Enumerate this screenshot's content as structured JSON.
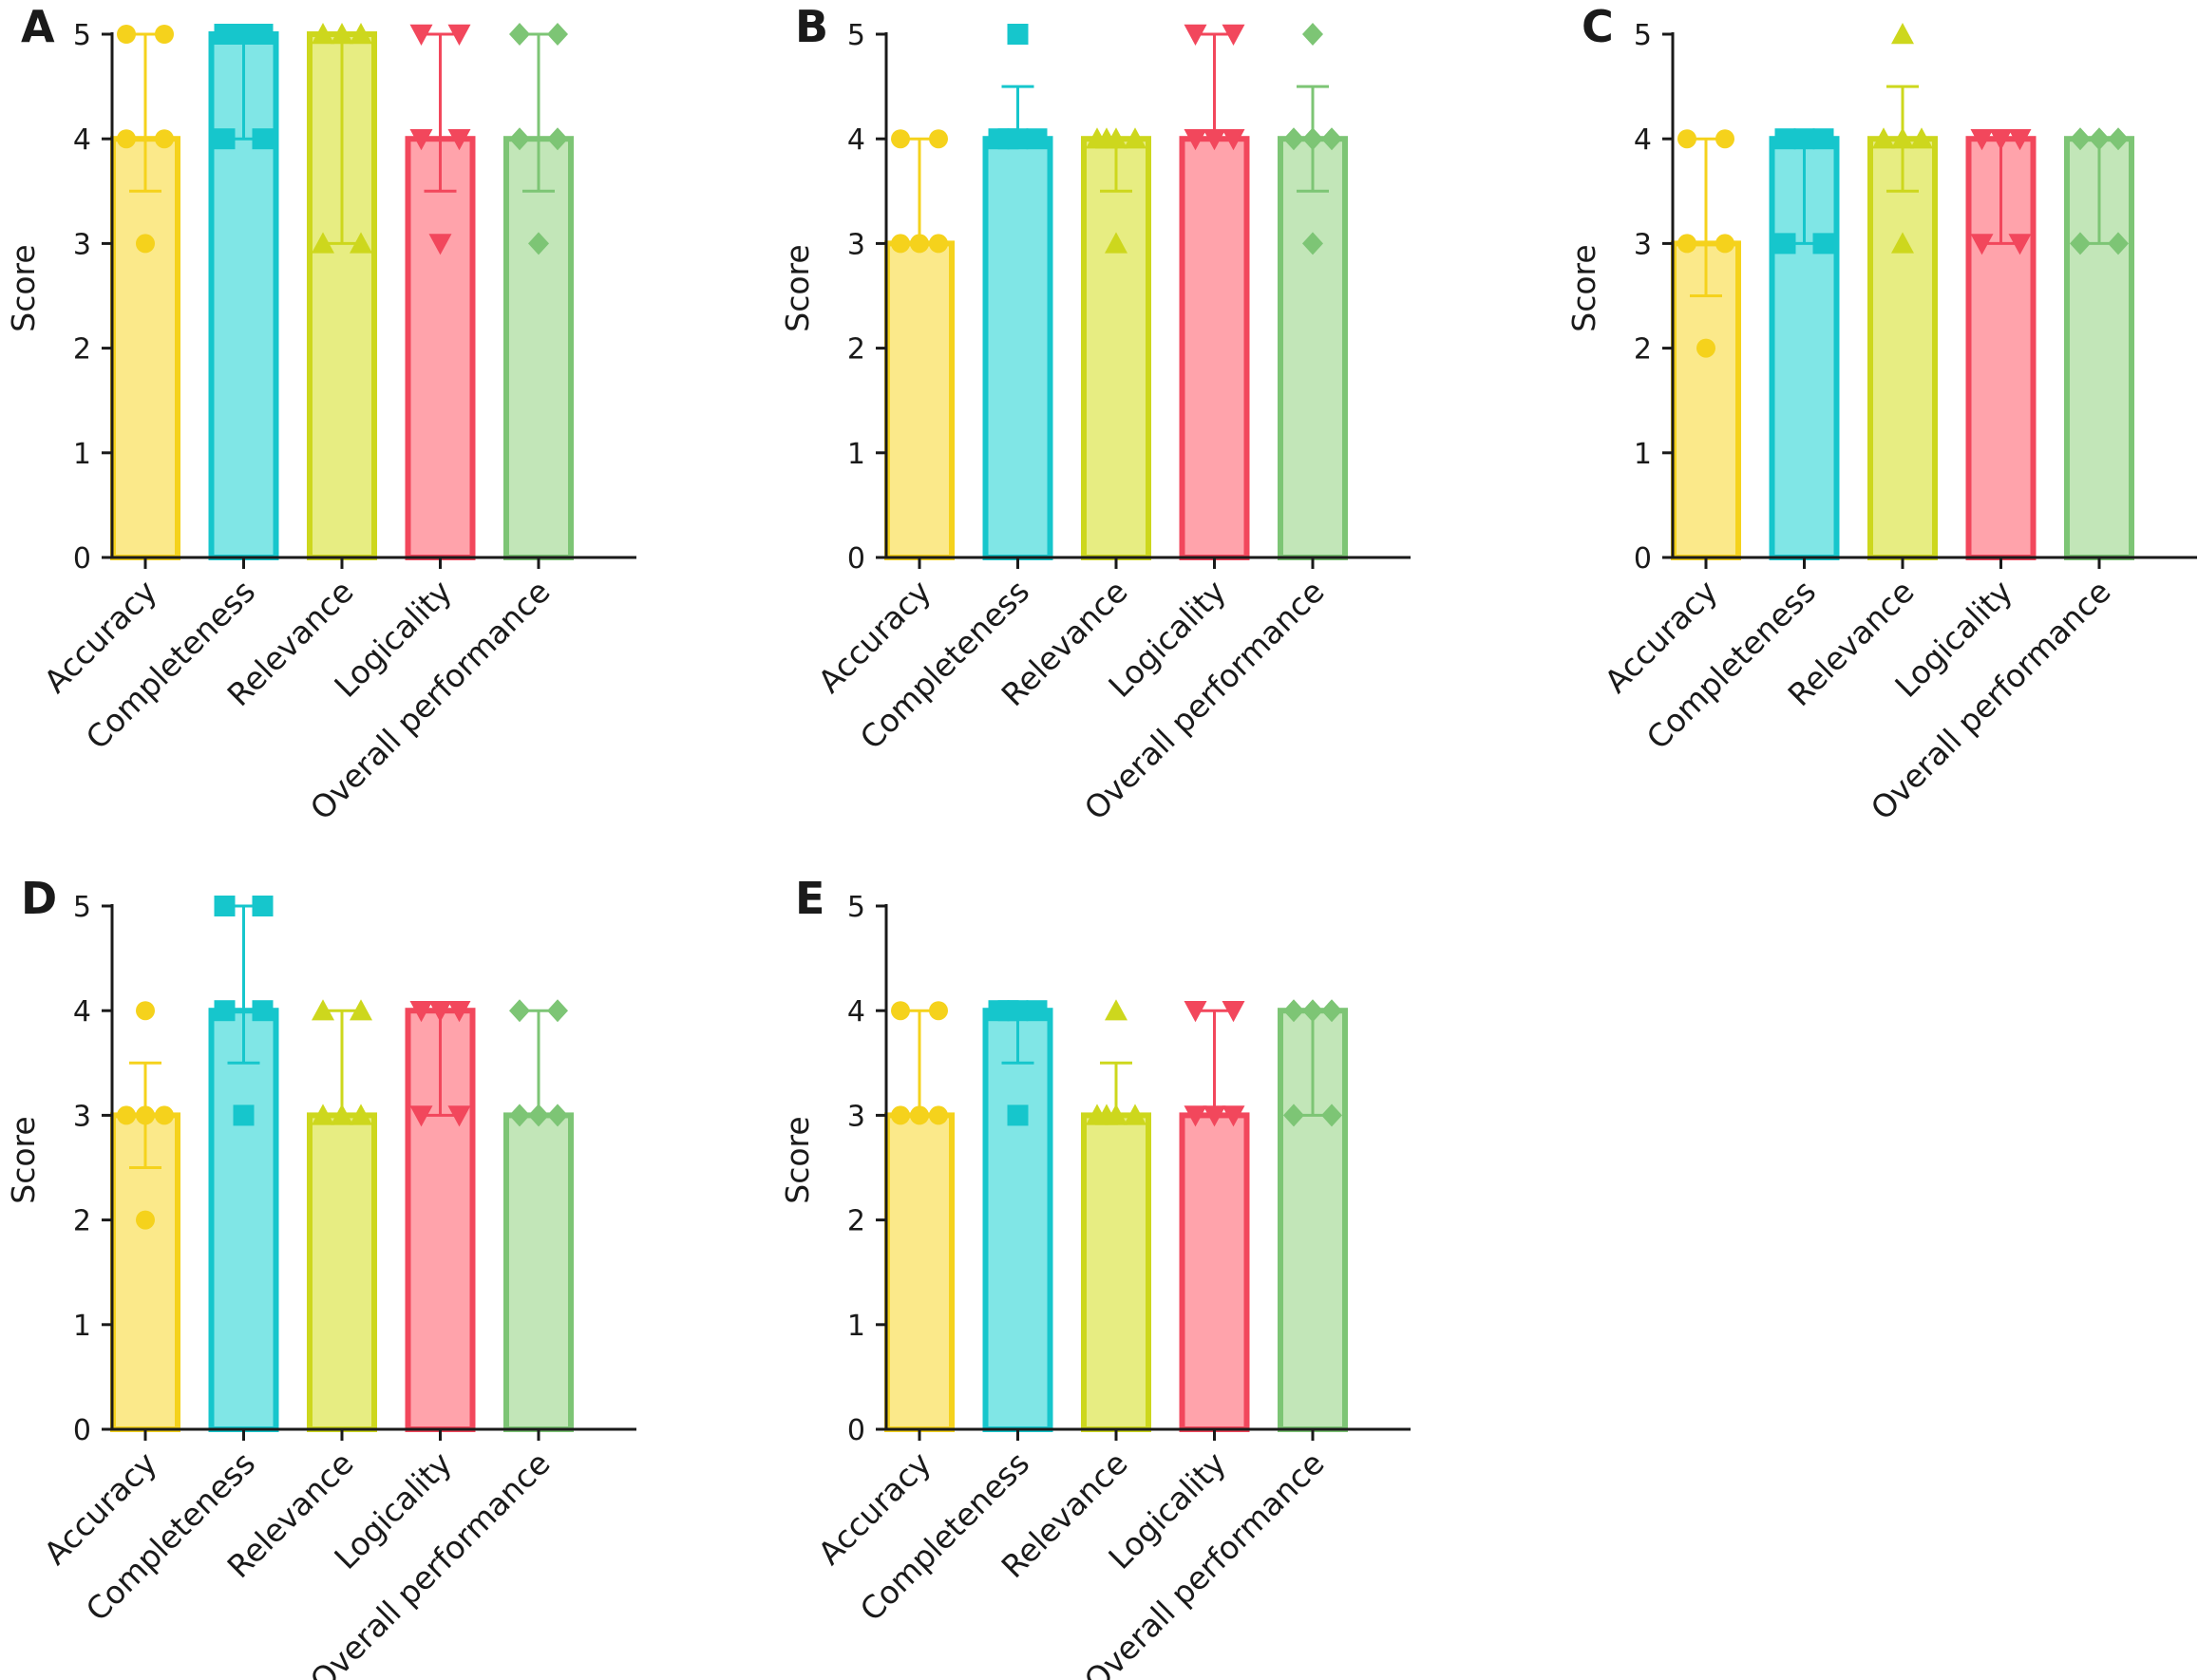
{
  "chart_data": [
    {
      "panel": "A",
      "type": "bar",
      "ylabel": "Score",
      "ylim": [
        0,
        5
      ],
      "yticks": [
        "0",
        "1",
        "2",
        "3",
        "4",
        "5"
      ],
      "categories": [
        "Accuracy",
        "Completeness",
        "Relevance",
        "Logicality",
        "Overall performance"
      ],
      "values": [
        4,
        5,
        5,
        4,
        4
      ],
      "error_low": [
        3.5,
        4,
        3,
        3.5,
        3.5
      ],
      "error_high": [
        5,
        5,
        5,
        5,
        5
      ],
      "points": [
        [
          5,
          5,
          4,
          4,
          3
        ],
        [
          5,
          5,
          5,
          4,
          4
        ],
        [
          5,
          5,
          5,
          3,
          3
        ],
        [
          5,
          5,
          4,
          4,
          3
        ],
        [
          5,
          5,
          4,
          4,
          3
        ]
      ]
    },
    {
      "panel": "B",
      "type": "bar",
      "ylabel": "Score",
      "ylim": [
        0,
        5
      ],
      "yticks": [
        "0",
        "1",
        "2",
        "3",
        "4",
        "5"
      ],
      "categories": [
        "Accuracy",
        "Completeness",
        "Relevance",
        "Logicality",
        "Overall performance"
      ],
      "values": [
        3,
        4,
        4,
        4,
        4
      ],
      "error_low": [
        3,
        4,
        3.5,
        4,
        3.5
      ],
      "error_high": [
        4,
        4.5,
        4,
        5,
        4.5
      ],
      "points": [
        [
          4,
          4,
          3,
          3,
          3
        ],
        [
          5,
          4,
          4,
          4,
          4
        ],
        [
          4,
          4,
          4,
          4,
          3
        ],
        [
          5,
          5,
          4,
          4,
          4
        ],
        [
          5,
          4,
          4,
          4,
          3
        ]
      ]
    },
    {
      "panel": "C",
      "type": "bar",
      "ylabel": "Score",
      "ylim": [
        0,
        5
      ],
      "yticks": [
        "0",
        "1",
        "2",
        "3",
        "4",
        "5"
      ],
      "categories": [
        "Accuracy",
        "Completeness",
        "Relevance",
        "Logicality",
        "Overall performance"
      ],
      "values": [
        3,
        4,
        4,
        4,
        4
      ],
      "error_low": [
        2.5,
        3,
        3.5,
        3,
        3
      ],
      "error_high": [
        4,
        4,
        4.5,
        4,
        4
      ],
      "points": [
        [
          4,
          4,
          3,
          3,
          2
        ],
        [
          4,
          4,
          4,
          3,
          3
        ],
        [
          5,
          4,
          4,
          4,
          3
        ],
        [
          4,
          4,
          4,
          3,
          3
        ],
        [
          4,
          4,
          4,
          3,
          3
        ]
      ]
    },
    {
      "panel": "D",
      "type": "bar",
      "ylabel": "Score",
      "ylim": [
        0,
        5
      ],
      "yticks": [
        "0",
        "1",
        "2",
        "3",
        "4",
        "5"
      ],
      "categories": [
        "Accuracy",
        "Completeness",
        "Relevance",
        "Logicality",
        "Overall performance"
      ],
      "values": [
        3,
        4,
        3,
        4,
        3
      ],
      "error_low": [
        2.5,
        3.5,
        3,
        3,
        3
      ],
      "error_high": [
        3.5,
        5,
        4,
        4,
        4
      ],
      "points": [
        [
          4,
          3,
          3,
          3,
          2
        ],
        [
          5,
          5,
          4,
          4,
          3
        ],
        [
          4,
          4,
          3,
          3,
          3
        ],
        [
          4,
          4,
          4,
          3,
          3
        ],
        [
          4,
          4,
          3,
          3,
          3
        ]
      ]
    },
    {
      "panel": "E",
      "type": "bar",
      "ylabel": "Score",
      "ylim": [
        0,
        5
      ],
      "yticks": [
        "0",
        "1",
        "2",
        "3",
        "4",
        "5"
      ],
      "categories": [
        "Accuracy",
        "Completeness",
        "Relevance",
        "Logicality",
        "Overall performance"
      ],
      "values": [
        3,
        4,
        3,
        3,
        4
      ],
      "error_low": [
        3,
        3.5,
        3,
        3,
        3
      ],
      "error_high": [
        4,
        4,
        3.5,
        4,
        4
      ],
      "points": [
        [
          4,
          4,
          3,
          3,
          3
        ],
        [
          4,
          4,
          4,
          4,
          3
        ],
        [
          4,
          3,
          3,
          3,
          3
        ],
        [
          4,
          4,
          3,
          3,
          3
        ],
        [
          4,
          4,
          4,
          3,
          3
        ]
      ]
    }
  ],
  "style": {
    "fill_colors": [
      "#fbe98a",
      "#80e6e6",
      "#e7ed82",
      "#ffa3ab",
      "#c2e6b8"
    ],
    "stroke_colors": [
      "#f5d21c",
      "#16c6cc",
      "#cdd71d",
      "#f2475c",
      "#7dc575"
    ],
    "marker_shapes": [
      "circle",
      "square",
      "triangle-up",
      "triangle-down",
      "diamond"
    ],
    "axis_color": "#1a1a1a"
  }
}
